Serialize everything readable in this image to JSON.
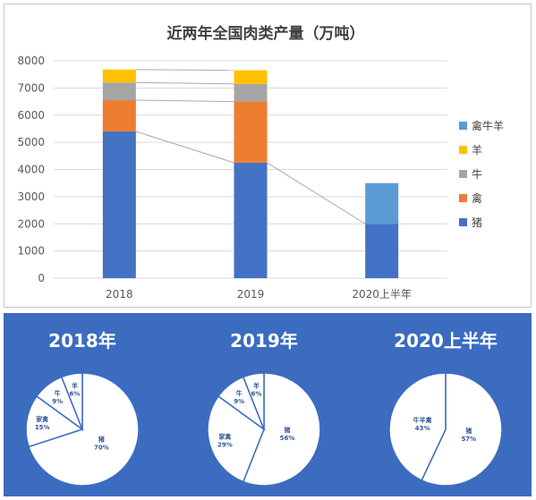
{
  "chart_data": [
    {
      "type": "bar",
      "stacked": true,
      "title": "近两年全国肉类产量（万吨）",
      "categories": [
        "2018",
        "2019",
        "2020上半年"
      ],
      "ylim": [
        0,
        8000
      ],
      "yticks": [
        "0",
        "1000",
        "2000",
        "3000",
        "4000",
        "5000",
        "6000",
        "7000",
        "8000"
      ],
      "grid": true,
      "legend_position": "right",
      "series": [
        {
          "name": "猪",
          "color": "#4472c4",
          "values": [
            5400,
            4250,
            2000
          ]
        },
        {
          "name": "禽",
          "color": "#ed7d31",
          "values": [
            1150,
            2250,
            0
          ]
        },
        {
          "name": "牛",
          "color": "#a5a5a5",
          "values": [
            650,
            650,
            0
          ]
        },
        {
          "name": "羊",
          "color": "#ffc000",
          "values": [
            480,
            500,
            0
          ]
        },
        {
          "name": "禽牛羊",
          "color": "#5b9bd5",
          "values": [
            0,
            0,
            1500
          ]
        }
      ],
      "legend_order": [
        "禽牛羊",
        "羊",
        "牛",
        "禽",
        "猪"
      ]
    },
    {
      "type": "pie",
      "title": "2018年",
      "slices": [
        {
          "name": "猪",
          "label": "猪",
          "pct_label": "70%",
          "value": 70
        },
        {
          "name": "家禽",
          "label": "家禽",
          "pct_label": "15%",
          "value": 15
        },
        {
          "name": "牛",
          "label": "牛",
          "pct_label": "9%",
          "value": 9
        },
        {
          "name": "羊",
          "label": "羊",
          "pct_label": "6%",
          "value": 6
        }
      ]
    },
    {
      "type": "pie",
      "title": "2019年",
      "slices": [
        {
          "name": "猪",
          "label": "猪",
          "pct_label": "56%",
          "value": 56
        },
        {
          "name": "家禽",
          "label": "家禽",
          "pct_label": "29%",
          "value": 29
        },
        {
          "name": "牛",
          "label": "牛",
          "pct_label": "9%",
          "value": 9
        },
        {
          "name": "羊",
          "label": "羊",
          "pct_label": "6%",
          "value": 6
        }
      ]
    },
    {
      "type": "pie",
      "title": "2020上半年",
      "slices": [
        {
          "name": "猪",
          "label": "猪",
          "pct_label": "57%",
          "value": 57
        },
        {
          "name": "牛羊禽",
          "label": "牛羊禽",
          "pct_label": "43%",
          "value": 43
        }
      ]
    }
  ]
}
